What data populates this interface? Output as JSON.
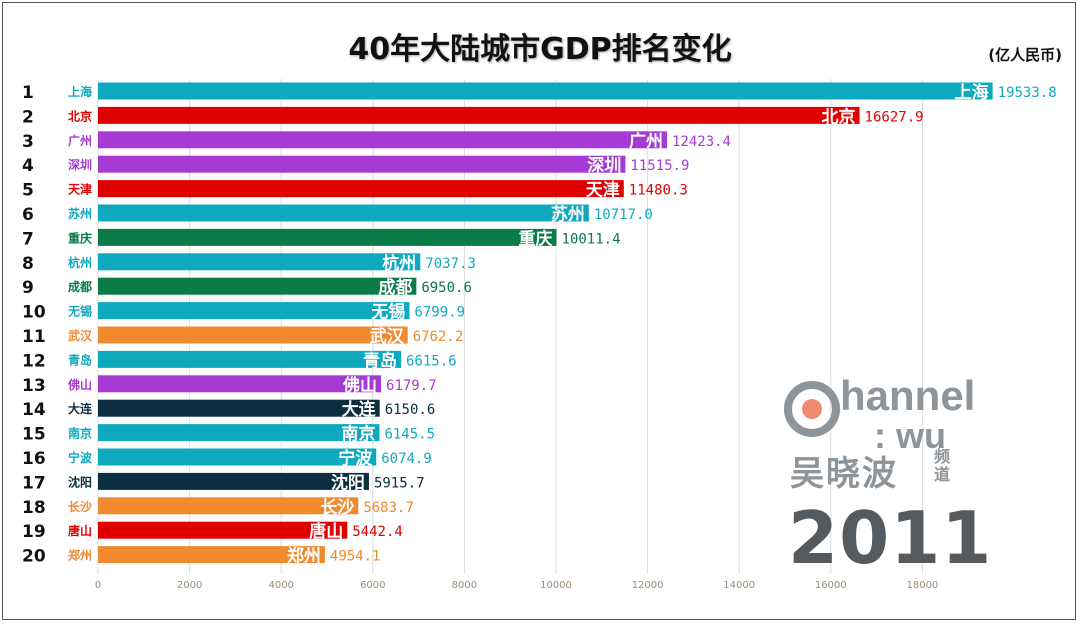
{
  "title": "40年大陆城市GDP排名变化",
  "unit": "(亿人民币)",
  "year": "2011",
  "logo": {
    "brand": "Channel",
    "sub": ": wu",
    "cn_name": "吴晓波",
    "cn_tag": "频道"
  },
  "colors": {
    "teal": "#0fa9bf",
    "red": "#e00000",
    "purple": "#a63ad4",
    "green": "#0a7a47",
    "orange": "#f08a2e",
    "navy": "#0b2e40"
  },
  "chart_data": {
    "type": "bar",
    "orientation": "horizontal",
    "title": "40年大陆城市GDP排名变化",
    "xlabel": "",
    "ylabel": "",
    "xlim": [
      0,
      20000
    ],
    "xticks": [
      0,
      2000,
      4000,
      6000,
      8000,
      10000,
      12000,
      14000,
      16000,
      18000
    ],
    "grid": true,
    "ranks": [
      "1",
      "2",
      "3",
      "4",
      "5",
      "6",
      "7",
      "8",
      "9",
      "10",
      "11",
      "12",
      "13",
      "14",
      "15",
      "16",
      "17",
      "18",
      "19",
      "20"
    ],
    "categories": [
      "上海",
      "北京",
      "广州",
      "深圳",
      "天津",
      "苏州",
      "重庆",
      "杭州",
      "成都",
      "无锡",
      "武汉",
      "青岛",
      "佛山",
      "大连",
      "南京",
      "宁波",
      "沈阳",
      "长沙",
      "唐山",
      "郑州"
    ],
    "values": [
      19533.8,
      16627.9,
      12423.4,
      11515.9,
      11480.3,
      10717.0,
      10011.4,
      7037.3,
      6950.6,
      6799.9,
      6762.2,
      6615.6,
      6179.7,
      6150.6,
      6145.5,
      6074.9,
      5915.7,
      5683.7,
      5442.4,
      4954.1
    ],
    "value_labels": [
      "19533.8",
      "16627.9",
      "12423.4",
      "11515.9",
      "11480.3",
      "10717.0",
      "10011.4",
      "7037.3",
      "6950.6",
      "6799.9",
      "6762.2",
      "6615.6",
      "6179.7",
      "6150.6",
      "6145.5",
      "6074.9",
      "5915.7",
      "5683.7",
      "5442.4",
      "4954.1"
    ],
    "bar_colors": [
      "#0fa9bf",
      "#e00000",
      "#a63ad4",
      "#a63ad4",
      "#e00000",
      "#0fa9bf",
      "#0a7a47",
      "#0fa9bf",
      "#0a7a47",
      "#0fa9bf",
      "#f08a2e",
      "#0fa9bf",
      "#a63ad4",
      "#0b2e40",
      "#0fa9bf",
      "#0fa9bf",
      "#0b2e40",
      "#f08a2e",
      "#e00000",
      "#f08a2e"
    ]
  }
}
